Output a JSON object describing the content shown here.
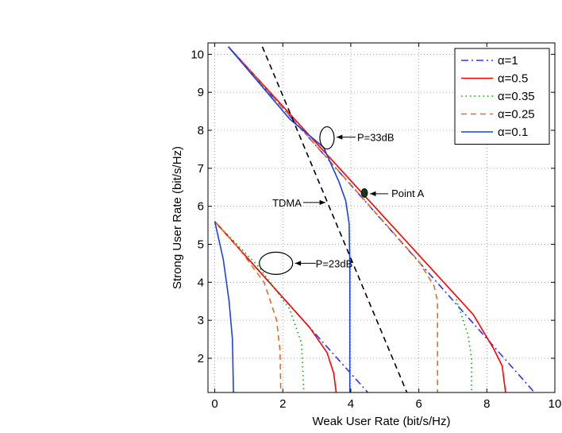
{
  "chart_data": {
    "type": "line",
    "title": "",
    "xlabel": "Weak User Rate (bit/s/Hz)",
    "ylabel": "Strong User Rate (bit/s/Hz)",
    "xlim": [
      -0.2,
      10
    ],
    "ylim": [
      1.1,
      10.3
    ],
    "grid": true,
    "xticks": [
      0,
      2,
      4,
      6,
      8,
      10
    ],
    "yticks": [
      2,
      3,
      4,
      5,
      6,
      7,
      8,
      9,
      10
    ],
    "legend": {
      "position": "top-right",
      "entries": [
        {
          "label": "α=1",
          "color": "#3333ff",
          "dash": "dashdot"
        },
        {
          "label": "α=0.5",
          "color": "#ff0000",
          "dash": "solid"
        },
        {
          "label": "α=0.35",
          "color": "#00aa00",
          "dash": "dotted"
        },
        {
          "label": "α=0.25",
          "color": "#e07020",
          "dash": "dashed"
        },
        {
          "label": "α=0.1",
          "color": "#1a44dd",
          "dash": "solid"
        }
      ]
    },
    "series": [
      {
        "name": "α=1, P=33dB",
        "color": "#3333ff",
        "dash": "dashdot",
        "points": [
          [
            0.4,
            10.2
          ],
          [
            9.4,
            1.1
          ]
        ]
      },
      {
        "name": "α=0.5, P=33dB",
        "color": "#ff0000",
        "dash": "solid",
        "points": [
          [
            0.4,
            10.2
          ],
          [
            7.6,
            3.15
          ],
          [
            8.2,
            2.25
          ],
          [
            8.45,
            1.8
          ],
          [
            8.55,
            1.1
          ]
        ]
      },
      {
        "name": "α=0.35, P=33dB",
        "color": "#00aa00",
        "dash": "dotted",
        "points": [
          [
            7.1,
            3.55
          ],
          [
            7.45,
            2.6
          ],
          [
            7.55,
            2.0
          ],
          [
            7.55,
            1.1
          ]
        ]
      },
      {
        "name": "α=0.25, P=33dB",
        "color": "#e07020",
        "dash": "dashed",
        "points": [
          [
            0.4,
            10.2
          ],
          [
            6.0,
            4.55
          ],
          [
            6.45,
            3.9
          ],
          [
            6.55,
            3.5
          ],
          [
            6.55,
            1.1
          ]
        ]
      },
      {
        "name": "α=0.1, P=33dB",
        "color": "#1a44dd",
        "dash": "solid",
        "points": [
          [
            0.4,
            10.2
          ],
          [
            2.2,
            8.3
          ],
          [
            3.2,
            7.55
          ],
          [
            3.65,
            6.65
          ],
          [
            3.85,
            6.15
          ],
          [
            3.95,
            5.55
          ],
          [
            3.97,
            4.5
          ],
          [
            3.97,
            1.1
          ]
        ]
      },
      {
        "name": "TDMA",
        "color": "#000000",
        "dash": "dashed",
        "points": [
          [
            1.4,
            10.2
          ],
          [
            5.65,
            1.1
          ]
        ]
      },
      {
        "name": "α=1, P=23dB",
        "color": "#3333ff",
        "dash": "dashdot",
        "points": [
          [
            0.0,
            5.6
          ],
          [
            4.5,
            1.1
          ]
        ]
      },
      {
        "name": "α=0.5, P=23dB",
        "color": "#ff0000",
        "dash": "solid",
        "points": [
          [
            0.0,
            5.6
          ],
          [
            2.8,
            2.8
          ],
          [
            3.3,
            2.15
          ],
          [
            3.5,
            1.6
          ],
          [
            3.57,
            1.1
          ]
        ]
      },
      {
        "name": "α=0.35, P=23dB",
        "color": "#00aa00",
        "dash": "dotted",
        "points": [
          [
            0.0,
            5.6
          ],
          [
            1.3,
            4.4
          ],
          [
            2.2,
            3.3
          ],
          [
            2.55,
            2.4
          ],
          [
            2.62,
            1.1
          ]
        ]
      },
      {
        "name": "α=0.25, P=23dB",
        "color": "#e07020",
        "dash": "dashed",
        "points": [
          [
            0.0,
            5.6
          ],
          [
            0.7,
            4.9
          ],
          [
            1.45,
            4.0
          ],
          [
            1.82,
            3.0
          ],
          [
            1.92,
            2.2
          ],
          [
            1.94,
            1.1
          ]
        ]
      },
      {
        "name": "α=0.1, P=23dB",
        "color": "#1a44dd",
        "dash": "solid",
        "points": [
          [
            0.0,
            5.6
          ],
          [
            0.25,
            4.6
          ],
          [
            0.42,
            3.5
          ],
          [
            0.52,
            2.5
          ],
          [
            0.55,
            1.1
          ]
        ]
      }
    ],
    "annotations": [
      {
        "text": "P=33dB",
        "target": [
          3.3,
          7.8
        ],
        "marker": "ellipse"
      },
      {
        "text": "Point A",
        "target": [
          4.4,
          6.35
        ],
        "marker": "dot"
      },
      {
        "text": "TDMA",
        "target": [
          3.3,
          6.1
        ],
        "marker": "none"
      },
      {
        "text": "P=23dB",
        "target": [
          1.8,
          4.5
        ],
        "marker": "ellipse"
      }
    ]
  }
}
